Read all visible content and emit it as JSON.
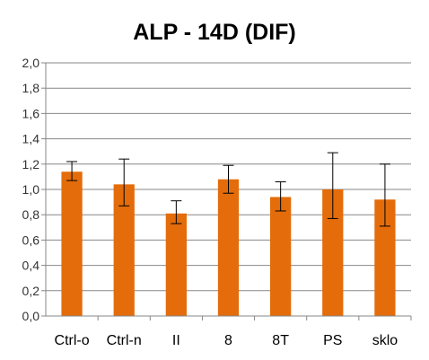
{
  "chart_data": {
    "type": "bar",
    "title": "ALP - 14D (DIF)",
    "xlabel": "",
    "ylabel": "",
    "categories": [
      "Ctrl-o",
      "Ctrl-n",
      "II",
      "8",
      "8T",
      "PS",
      "sklo"
    ],
    "values": [
      1.14,
      1.04,
      0.81,
      1.08,
      0.94,
      1.0,
      0.92
    ],
    "error_low": [
      1.07,
      0.87,
      0.73,
      0.97,
      0.83,
      0.77,
      0.71
    ],
    "error_high": [
      1.22,
      1.24,
      0.91,
      1.19,
      1.06,
      1.29,
      1.2
    ],
    "ylim": [
      0,
      2.0
    ],
    "yticks": [
      0,
      0.2,
      0.4,
      0.6,
      0.8,
      1.0,
      1.2,
      1.4,
      1.6,
      1.8,
      2.0
    ],
    "ytick_labels": [
      "0,0",
      "0,2",
      "0,4",
      "0,6",
      "0,8",
      "1,0",
      "1,2",
      "1,4",
      "1,6",
      "1,8",
      "2,0"
    ],
    "grid": true,
    "legend": "none",
    "colors": {
      "bar": "#E46C0A",
      "grid": "#878787",
      "axis": "#878787",
      "errorbar": "#000000"
    }
  }
}
